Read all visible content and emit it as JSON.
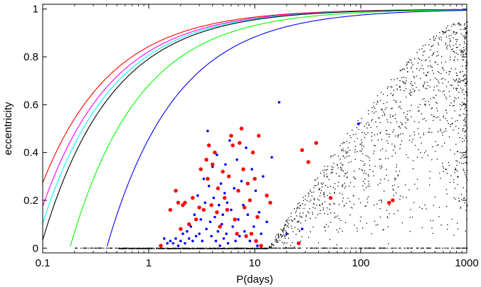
{
  "chart_data": {
    "type": "scatter",
    "title": "",
    "xlabel": "P(days)",
    "ylabel": "eccentricity",
    "xscale": "log",
    "xlim": [
      0.1,
      1000
    ],
    "ylim": [
      -0.02,
      1.02
    ],
    "grid": false,
    "legend": "none",
    "x_ticks": [
      0.1,
      1,
      10,
      100,
      1000
    ],
    "x_tick_labels": [
      "0.1",
      "1",
      "10",
      "100",
      "1000"
    ],
    "y_ticks": [
      0,
      0.2,
      0.4,
      0.6,
      0.8,
      1
    ],
    "y_tick_labels": [
      "0",
      "0.2",
      "0.4",
      "0.6",
      "0.8",
      "1"
    ],
    "curves": [
      {
        "color": "#ff0000",
        "p0": 0.062
      },
      {
        "color": "#ff00ff",
        "p0": 0.075
      },
      {
        "color": "#00ffff",
        "p0": 0.085
      },
      {
        "color": "#000000",
        "p0": 0.095
      },
      {
        "color": "#00ff00",
        "p0": 0.18
      },
      {
        "color": "#0000ff",
        "p0": 0.4
      }
    ],
    "red_points": [
      [
        1.3,
        0.01
      ],
      [
        1.6,
        0.16
      ],
      [
        1.8,
        0.24
      ],
      [
        1.9,
        0.19
      ],
      [
        2.0,
        0.08
      ],
      [
        2.1,
        0.18
      ],
      [
        2.2,
        0.19
      ],
      [
        2.4,
        0.1
      ],
      [
        2.6,
        0.21
      ],
      [
        2.8,
        0.12
      ],
      [
        3.0,
        0.17
      ],
      [
        3.1,
        0.33
      ],
      [
        3.3,
        0.16
      ],
      [
        3.5,
        0.37
      ],
      [
        3.6,
        0.29
      ],
      [
        3.7,
        0.43
      ],
      [
        3.9,
        0.18
      ],
      [
        4.0,
        0.35
      ],
      [
        4.2,
        0.4
      ],
      [
        4.4,
        0.15
      ],
      [
        4.5,
        0.25
      ],
      [
        4.7,
        0.09
      ],
      [
        5.0,
        0.32
      ],
      [
        5.2,
        0.21
      ],
      [
        5.5,
        0.16
      ],
      [
        5.7,
        0.3
      ],
      [
        6.0,
        0.47
      ],
      [
        6.2,
        0.43
      ],
      [
        6.5,
        0.12
      ],
      [
        6.8,
        0.06
      ],
      [
        7.0,
        0.24
      ],
      [
        7.2,
        0.44
      ],
      [
        7.5,
        0.5
      ],
      [
        7.8,
        0.33
      ],
      [
        8.0,
        0.17
      ],
      [
        8.3,
        0.05
      ],
      [
        8.6,
        0.27
      ],
      [
        9.0,
        0.2
      ],
      [
        9.3,
        0.06
      ],
      [
        9.6,
        0.4
      ],
      [
        10.0,
        0.29
      ],
      [
        10.3,
        0.03
      ],
      [
        10.6,
        0.13
      ],
      [
        10.9,
        0.47
      ],
      [
        11.5,
        0.01
      ],
      [
        13.0,
        0.22
      ],
      [
        14.0,
        0.19
      ],
      [
        26.0,
        0.02
      ],
      [
        28.0,
        0.41
      ],
      [
        32.0,
        0.36
      ],
      [
        38.0,
        0.44
      ],
      [
        52.0,
        0.21
      ],
      [
        185.0,
        0.19
      ],
      [
        200.0,
        0.2
      ]
    ],
    "blue_points": [
      [
        1.4,
        0.04
      ],
      [
        1.5,
        0.02
      ],
      [
        1.6,
        0.03
      ],
      [
        1.7,
        0.02
      ],
      [
        1.8,
        0.04
      ],
      [
        1.9,
        0.01
      ],
      [
        2.0,
        0.03
      ],
      [
        2.1,
        0.06
      ],
      [
        2.2,
        0.02
      ],
      [
        2.3,
        0.07
      ],
      [
        2.4,
        0.04
      ],
      [
        2.5,
        0.09
      ],
      [
        2.6,
        0.03
      ],
      [
        2.7,
        0.14
      ],
      [
        2.8,
        0.05
      ],
      [
        2.9,
        0.22
      ],
      [
        3.0,
        0.06
      ],
      [
        3.1,
        0.12
      ],
      [
        3.2,
        0.03
      ],
      [
        3.3,
        0.29
      ],
      [
        3.4,
        0.19
      ],
      [
        3.5,
        0.08
      ],
      [
        3.6,
        0.49
      ],
      [
        3.7,
        0.26
      ],
      [
        3.8,
        0.11
      ],
      [
        3.9,
        0.05
      ],
      [
        4.0,
        0.34
      ],
      [
        4.1,
        0.21
      ],
      [
        4.2,
        0.13
      ],
      [
        4.3,
        0.03
      ],
      [
        4.4,
        0.39
      ],
      [
        4.5,
        0.07
      ],
      [
        4.6,
        0.18
      ],
      [
        4.7,
        0.01
      ],
      [
        4.8,
        0.27
      ],
      [
        4.9,
        0.1
      ],
      [
        5.0,
        0.14
      ],
      [
        5.1,
        0.04
      ],
      [
        5.2,
        0.23
      ],
      [
        5.3,
        0.35
      ],
      [
        5.4,
        0.06
      ],
      [
        5.5,
        0.19
      ],
      [
        5.6,
        0.02
      ],
      [
        5.8,
        0.45
      ],
      [
        6.0,
        0.16
      ],
      [
        6.2,
        0.09
      ],
      [
        6.4,
        0.25
      ],
      [
        6.6,
        0.03
      ],
      [
        6.8,
        0.37
      ],
      [
        7.0,
        0.12
      ],
      [
        7.2,
        0.05
      ],
      [
        7.5,
        0.28
      ],
      [
        7.8,
        0.18
      ],
      [
        8.0,
        0.07
      ],
      [
        8.3,
        0.42
      ],
      [
        8.6,
        0.14
      ],
      [
        9.0,
        0.03
      ],
      [
        9.4,
        0.33
      ],
      [
        9.8,
        0.09
      ],
      [
        10.2,
        0.24
      ],
      [
        10.6,
        0.01
      ],
      [
        11.0,
        0.15
      ],
      [
        11.5,
        0.06
      ],
      [
        12.0,
        0.3
      ],
      [
        13.0,
        0.11
      ],
      [
        14.5,
        0.38
      ],
      [
        17.0,
        0.61
      ],
      [
        20.0,
        0.06
      ],
      [
        28.0,
        0.08
      ],
      [
        95.0,
        0.52
      ]
    ],
    "black_points": {
      "count": 1700,
      "zero_line_count": 360,
      "seed": 1234567
    }
  }
}
